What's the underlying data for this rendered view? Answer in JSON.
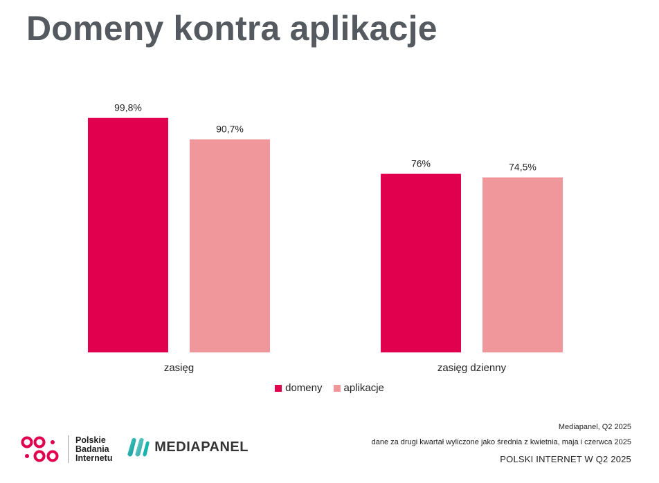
{
  "title": "Domeny kontra aplikacje",
  "colors": {
    "domeny": "#e0004d",
    "aplikacje": "#ef979a",
    "title": "#555a60"
  },
  "chart_data": {
    "type": "bar",
    "categories": [
      "zasięg",
      "zasięg dzienny"
    ],
    "series": [
      {
        "name": "domeny",
        "values": [
          99.8,
          76
        ],
        "labels": [
          "99,8%",
          "76%"
        ]
      },
      {
        "name": "aplikacje",
        "values": [
          90.7,
          74.5
        ],
        "labels": [
          "90,7%",
          "74,5%"
        ]
      }
    ],
    "ylim": [
      0,
      100
    ],
    "grid": false,
    "legend": "bottom"
  },
  "footer": {
    "source": "Mediapanel, Q2 2025",
    "note": "dane za drugi kwartał wyliczone jako średnia z kwietnia, maja i czerwca 2025",
    "tag": "POLSKI INTERNET W Q2 2025"
  },
  "logos": {
    "pbi_line1": "Polskie",
    "pbi_line2": "Badania",
    "pbi_line3": "Internetu",
    "mediapanel": "MEDIAPANEL"
  }
}
